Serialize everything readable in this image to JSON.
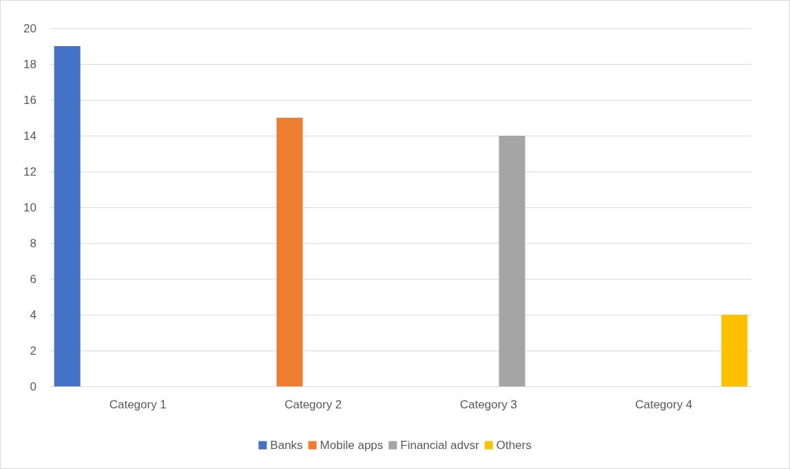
{
  "chart_data": {
    "type": "bar",
    "categories": [
      "Category 1",
      "Category 2",
      "Category 3",
      "Category 4"
    ],
    "series": [
      {
        "name": "Banks",
        "color": "#4472c4",
        "values": [
          19,
          null,
          null,
          null
        ]
      },
      {
        "name": "Mobile apps",
        "color": "#ed7d31",
        "values": [
          null,
          15,
          null,
          null
        ]
      },
      {
        "name": "Financial advsr",
        "color": "#a5a5a5",
        "values": [
          null,
          null,
          14,
          null
        ]
      },
      {
        "name": "Others",
        "color": "#ffc000",
        "values": [
          null,
          null,
          null,
          4
        ]
      }
    ],
    "ylim": [
      0,
      20
    ],
    "yticks": [
      0,
      2,
      4,
      6,
      8,
      10,
      12,
      14,
      16,
      18,
      20
    ],
    "grid": "y",
    "legend": "bottom"
  }
}
